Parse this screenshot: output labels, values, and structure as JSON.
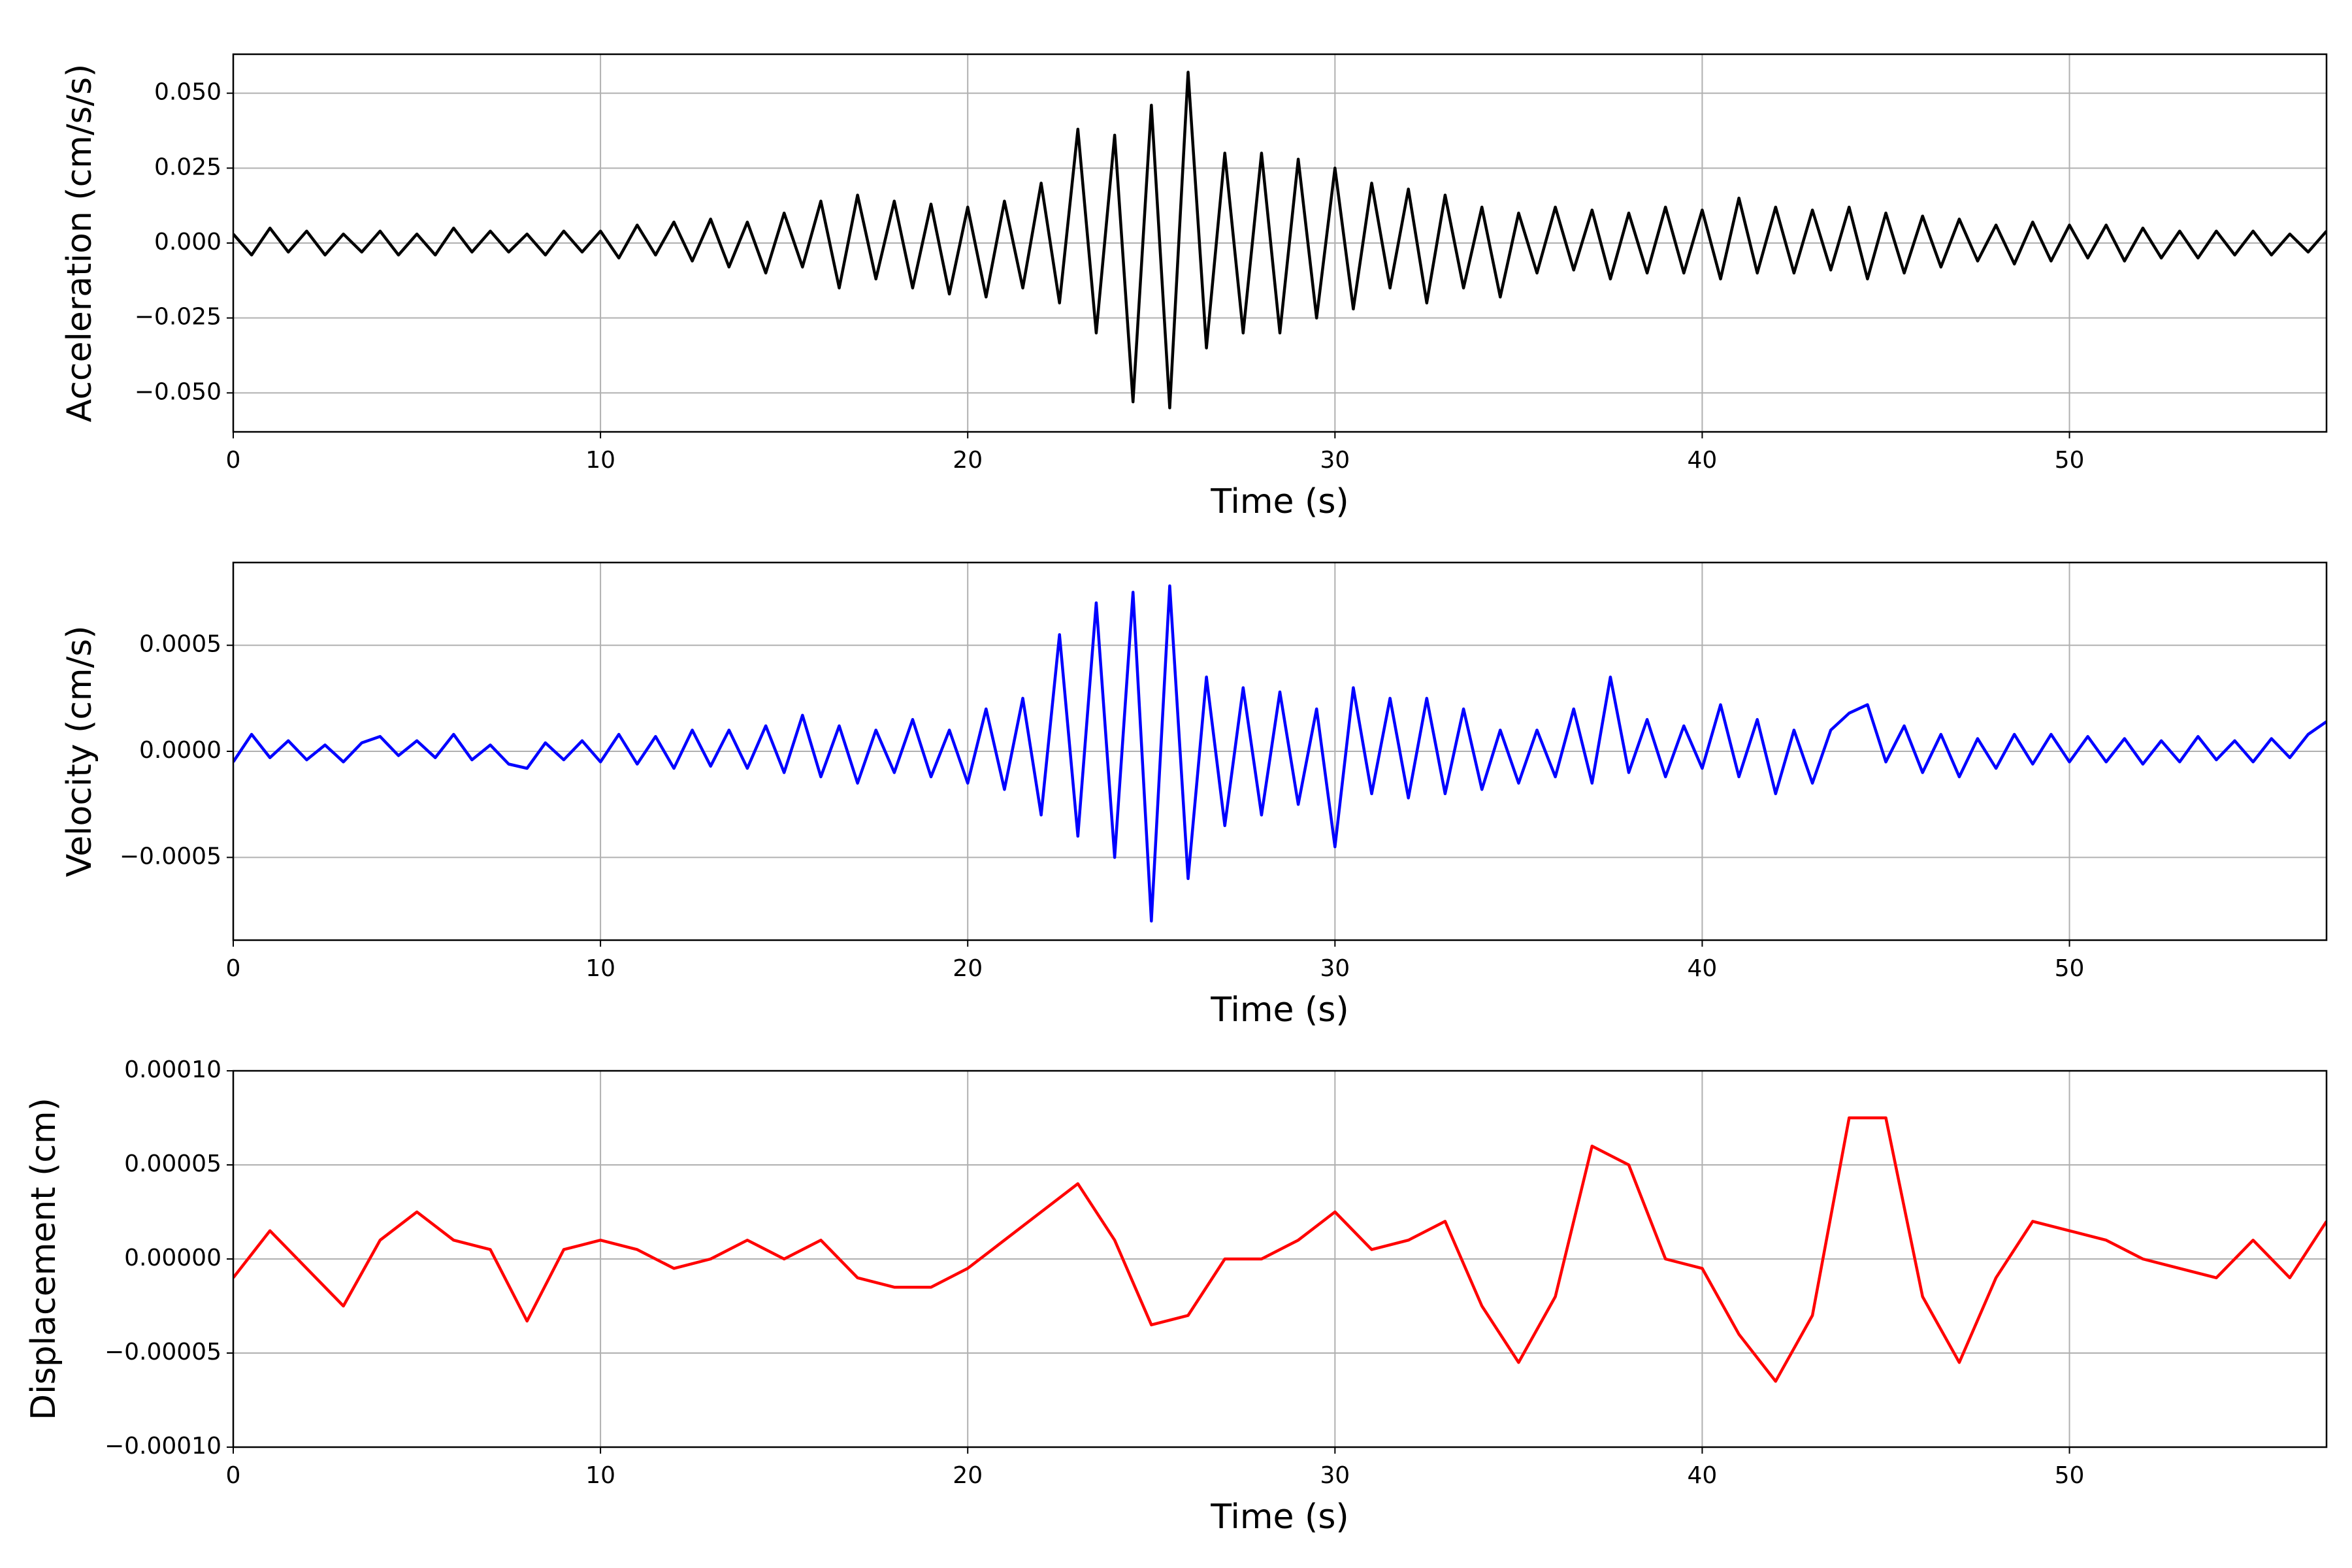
{
  "chart_data": [
    {
      "type": "line",
      "xlabel": "Time (s)",
      "ylabel": "Acceleration (cm/s/s)",
      "xlim": [
        0,
        57
      ],
      "xticks": [
        0,
        10,
        20,
        30,
        40,
        50
      ],
      "ylim": [
        -0.063,
        0.063
      ],
      "yticks": [
        {
          "value": -0.05,
          "label": "−0.050"
        },
        {
          "value": -0.025,
          "label": "−0.025"
        },
        {
          "value": 0,
          "label": "0.000"
        },
        {
          "value": 0.025,
          "label": "0.025"
        },
        {
          "value": 0.05,
          "label": "0.050"
        }
      ],
      "grid": true,
      "series": [
        {
          "color": "#000000",
          "x": [
            0,
            0.5,
            1,
            1.5,
            2,
            2.5,
            3,
            3.5,
            4,
            4.5,
            5,
            5.5,
            6,
            6.5,
            7,
            7.5,
            8,
            8.5,
            9,
            9.5,
            10,
            10.5,
            11,
            11.5,
            12,
            12.5,
            13,
            13.5,
            14,
            14.5,
            15,
            15.5,
            16,
            16.5,
            17,
            17.5,
            18,
            18.5,
            19,
            19.5,
            20,
            20.5,
            21,
            21.5,
            22,
            22.5,
            23,
            23.5,
            24,
            24.5,
            25,
            25.5,
            26,
            26.5,
            27,
            27.5,
            28,
            28.5,
            29,
            29.5,
            30,
            30.5,
            31,
            31.5,
            32,
            32.5,
            33,
            33.5,
            34,
            34.5,
            35,
            35.5,
            36,
            36.5,
            37,
            37.5,
            38,
            38.5,
            39,
            39.5,
            40,
            40.5,
            41,
            41.5,
            42,
            42.5,
            43,
            43.5,
            44,
            44.5,
            45,
            45.5,
            46,
            46.5,
            47,
            47.5,
            48,
            48.5,
            49,
            49.5,
            50,
            50.5,
            51,
            51.5,
            52,
            52.5,
            53,
            53.5,
            54,
            54.5,
            55,
            55.5,
            56,
            56.5,
            57
          ],
          "values": [
            0.003,
            -0.004,
            0.005,
            -0.003,
            0.004,
            -0.004,
            0.003,
            -0.003,
            0.004,
            -0.004,
            0.003,
            -0.004,
            0.005,
            -0.003,
            0.004,
            -0.003,
            0.003,
            -0.004,
            0.004,
            -0.003,
            0.004,
            -0.005,
            0.006,
            -0.004,
            0.007,
            -0.006,
            0.008,
            -0.008,
            0.007,
            -0.01,
            0.01,
            -0.008,
            0.014,
            -0.015,
            0.016,
            -0.012,
            0.014,
            -0.015,
            0.013,
            -0.017,
            0.012,
            -0.018,
            0.014,
            -0.015,
            0.02,
            -0.02,
            0.038,
            -0.03,
            0.036,
            -0.053,
            0.046,
            -0.055,
            0.057,
            -0.035,
            0.03,
            -0.03,
            0.03,
            -0.03,
            0.028,
            -0.025,
            0.025,
            -0.022,
            0.02,
            -0.015,
            0.018,
            -0.02,
            0.016,
            -0.015,
            0.012,
            -0.018,
            0.01,
            -0.01,
            0.012,
            -0.009,
            0.011,
            -0.012,
            0.01,
            -0.01,
            0.012,
            -0.01,
            0.011,
            -0.012,
            0.015,
            -0.01,
            0.012,
            -0.01,
            0.011,
            -0.009,
            0.012,
            -0.012,
            0.01,
            -0.01,
            0.009,
            -0.008,
            0.008,
            -0.006,
            0.006,
            -0.007,
            0.007,
            -0.006,
            0.006,
            -0.005,
            0.006,
            -0.006,
            0.005,
            -0.005,
            0.004,
            -0.005,
            0.004,
            -0.004,
            0.004,
            -0.004,
            0.003,
            -0.003,
            0.004
          ]
        }
      ]
    },
    {
      "type": "line",
      "xlabel": "Time (s)",
      "ylabel": "Velocity (cm/s)",
      "xlim": [
        0,
        57
      ],
      "xticks": [
        0,
        10,
        20,
        30,
        40,
        50
      ],
      "ylim": [
        -0.00089,
        0.00089
      ],
      "yticks": [
        {
          "value": -0.0005,
          "label": "−0.0005"
        },
        {
          "value": 0,
          "label": "0.0000"
        },
        {
          "value": 0.0005,
          "label": "0.0005"
        }
      ],
      "grid": true,
      "series": [
        {
          "color": "#0000ff",
          "x": [
            0,
            0.5,
            1,
            1.5,
            2,
            2.5,
            3,
            3.5,
            4,
            4.5,
            5,
            5.5,
            6,
            6.5,
            7,
            7.5,
            8,
            8.5,
            9,
            9.5,
            10,
            10.5,
            11,
            11.5,
            12,
            12.5,
            13,
            13.5,
            14,
            14.5,
            15,
            15.5,
            16,
            16.5,
            17,
            17.5,
            18,
            18.5,
            19,
            19.5,
            20,
            20.5,
            21,
            21.5,
            22,
            22.5,
            23,
            23.5,
            24,
            24.5,
            25,
            25.5,
            26,
            26.5,
            27,
            27.5,
            28,
            28.5,
            29,
            29.5,
            30,
            30.5,
            31,
            31.5,
            32,
            32.5,
            33,
            33.5,
            34,
            34.5,
            35,
            35.5,
            36,
            36.5,
            37,
            37.5,
            38,
            38.5,
            39,
            39.5,
            40,
            40.5,
            41,
            41.5,
            42,
            42.5,
            43,
            43.5,
            44,
            44.5,
            45,
            45.5,
            46,
            46.5,
            47,
            47.5,
            48,
            48.5,
            49,
            49.5,
            50,
            50.5,
            51,
            51.5,
            52,
            52.5,
            53,
            53.5,
            54,
            54.5,
            55,
            55.5,
            56,
            56.5,
            57
          ],
          "values": [
            -5e-05,
            8e-05,
            -3e-05,
            5e-05,
            -4e-05,
            3e-05,
            -5e-05,
            4e-05,
            7e-05,
            -2e-05,
            5e-05,
            -3e-05,
            8e-05,
            -4e-05,
            3e-05,
            -6e-05,
            -8e-05,
            4e-05,
            -4e-05,
            5e-05,
            -5e-05,
            8e-05,
            -6e-05,
            7e-05,
            -8e-05,
            0.0001,
            -7e-05,
            0.0001,
            -8e-05,
            0.00012,
            -0.0001,
            0.00017,
            -0.00012,
            0.00012,
            -0.00015,
            0.0001,
            -0.0001,
            0.00015,
            -0.00012,
            0.0001,
            -0.00015,
            0.0002,
            -0.00018,
            0.00025,
            -0.0003,
            0.00055,
            -0.0004,
            0.0007,
            -0.0005,
            0.00075,
            -0.0008,
            0.00078,
            -0.0006,
            0.00035,
            -0.00035,
            0.0003,
            -0.0003,
            0.00028,
            -0.00025,
            0.0002,
            -0.00045,
            0.0003,
            -0.0002,
            0.00025,
            -0.00022,
            0.00025,
            -0.0002,
            0.0002,
            -0.00018,
            0.0001,
            -0.00015,
            0.0001,
            -0.00012,
            0.0002,
            -0.00015,
            0.00035,
            -0.0001,
            0.00015,
            -0.00012,
            0.00012,
            -8e-05,
            0.00022,
            -0.00012,
            0.00015,
            -0.0002,
            0.0001,
            -0.00015,
            0.0001,
            0.00018,
            0.00022,
            -5e-05,
            0.00012,
            -0.0001,
            8e-05,
            -0.00012,
            6e-05,
            -8e-05,
            8e-05,
            -6e-05,
            8e-05,
            -5e-05,
            7e-05,
            -5e-05,
            6e-05,
            -6e-05,
            5e-05,
            -5e-05,
            7e-05,
            -4e-05,
            5e-05,
            -5e-05,
            6e-05,
            -3e-05,
            8e-05,
            0.00014
          ]
        }
      ]
    },
    {
      "type": "line",
      "xlabel": "Time (s)",
      "ylabel": "Displacement (cm)",
      "xlim": [
        0,
        57
      ],
      "xticks": [
        0,
        10,
        20,
        30,
        40,
        50
      ],
      "ylim": [
        -0.0001,
        0.0001
      ],
      "yticks": [
        {
          "value": -0.0001,
          "label": "−0.00010"
        },
        {
          "value": -5e-05,
          "label": "−0.00005"
        },
        {
          "value": 0,
          "label": "0.00000"
        },
        {
          "value": 5e-05,
          "label": "0.00005"
        },
        {
          "value": 0.0001,
          "label": "0.00010"
        }
      ],
      "grid": true,
      "series": [
        {
          "color": "#ff0000",
          "x": [
            0,
            1,
            2,
            3,
            4,
            5,
            6,
            7,
            8,
            9,
            10,
            11,
            12,
            13,
            14,
            15,
            16,
            17,
            18,
            19,
            20,
            21,
            22,
            23,
            24,
            25,
            26,
            27,
            28,
            29,
            30,
            31,
            32,
            33,
            34,
            35,
            36,
            37,
            38,
            39,
            40,
            41,
            42,
            43,
            44,
            45,
            46,
            47,
            48,
            49,
            50,
            51,
            52,
            53,
            54,
            55,
            56,
            57
          ],
          "values": [
            -1e-05,
            1.5e-05,
            -5e-06,
            -2.5e-05,
            1e-05,
            2.5e-05,
            1e-05,
            5e-06,
            -3.3e-05,
            5e-06,
            1e-05,
            5e-06,
            -5e-06,
            0,
            1e-05,
            0,
            1e-05,
            -1e-05,
            -1.5e-05,
            -1.5e-05,
            -5e-06,
            1e-05,
            2.5e-05,
            4e-05,
            1e-05,
            -3.5e-05,
            -3e-05,
            0,
            0,
            1e-05,
            2.5e-05,
            5e-06,
            1e-05,
            2e-05,
            -2.5e-05,
            -5.5e-05,
            -2e-05,
            6e-05,
            5e-05,
            0,
            -5e-06,
            -4e-05,
            -6.5e-05,
            -3e-05,
            7.5e-05,
            7.5e-05,
            -2e-05,
            -5.5e-05,
            -1e-05,
            2e-05,
            1.5e-05,
            1e-05,
            0,
            -5e-06,
            -1e-05,
            1e-05,
            -1e-05,
            2e-05
          ]
        }
      ]
    }
  ]
}
